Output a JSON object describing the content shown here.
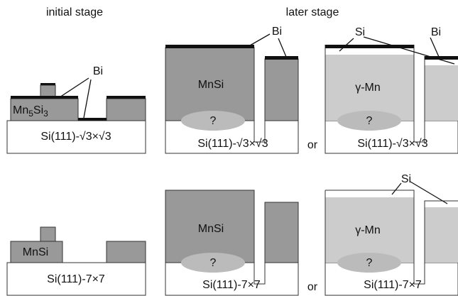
{
  "headers": {
    "initial": "initial stage",
    "later": "later stage"
  },
  "labels": {
    "bi": "Bi",
    "si": "Si",
    "mnsi": "MnSi",
    "gamma_mn": "γ-Mn",
    "question": "?",
    "or": "or",
    "mn5si3": [
      "Mn",
      "5",
      "Si",
      "3"
    ],
    "substrate_sqrt3": "Si(111)-√3×√3",
    "substrate_7x7": "Si(111)-7×7"
  }
}
